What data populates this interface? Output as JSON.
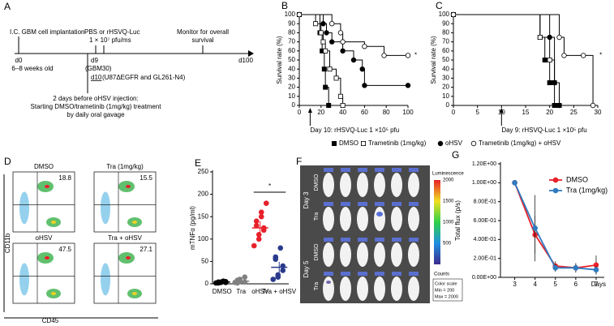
{
  "panel_a": {
    "label": "A",
    "implantation": "I.C. GBM cell implantation",
    "injection": "PBS or rHSVQ-Luc",
    "dose": "1 × 10⁷ pfu/ms",
    "monitor": [
      "Monitor for overall",
      "survival"
    ],
    "d0": "d0",
    "age": "6–8 weeks old",
    "d9": "d9",
    "d9_model": "(GBM30)",
    "d10": "d10",
    "d10_model": "(U87ΔEGFR and GL261-N4)",
    "d100": "d100",
    "note": [
      "2 days before oHSV injection:",
      "Starting DMSO/trametinib (1mg/kg) treatment",
      "by daily oral gavage"
    ]
  },
  "panel_d": {
    "label": "D",
    "plots": [
      {
        "title": "DMSO",
        "value": 18.8
      },
      {
        "title": "Tra (1mg/kg)",
        "value": 15.5
      },
      {
        "title": "oHSV",
        "value": 47.5
      },
      {
        "title": "Tra + oHSV",
        "value": 27.1
      }
    ],
    "y_label": "CD11b",
    "x_label": "CD45"
  },
  "panel_f": {
    "label": "F",
    "days": [
      "Day 3",
      "Day 5"
    ],
    "rows": [
      "DMSO",
      "Tra",
      "DMSO",
      "Tra"
    ],
    "colorbar_title": "Luminescence",
    "colorbar_ticks": [
      2000,
      1500,
      1000,
      500
    ],
    "counts": "Counts",
    "scale_note": [
      "Color scale",
      "Min = 200",
      "Max = 2000"
    ]
  },
  "chart_data": [
    {
      "type": "step",
      "label": "B",
      "y_label": "Survival rate (%)",
      "xlim": [
        0,
        100
      ],
      "xticks": [
        0,
        20,
        40,
        60,
        80,
        100
      ],
      "ylim": [
        0,
        100
      ],
      "yticks": [
        0,
        10,
        20,
        30,
        40,
        50,
        60,
        70,
        80,
        90,
        100
      ],
      "annotation": "Day 10: rHSVQ-Luc 1 ×10⁵ pfu",
      "significance": "*",
      "series": [
        {
          "name": "DMSO",
          "color": "#000000",
          "marker": "square",
          "filled": true,
          "x": [
            0,
            19,
            21,
            23,
            24,
            27
          ],
          "values": [
            100,
            80,
            60,
            40,
            20,
            0
          ]
        },
        {
          "name": "Trametinib (1mg/kg)",
          "color": "#000000",
          "marker": "square",
          "filled": false,
          "x": [
            0,
            15,
            20,
            22,
            24,
            28,
            34,
            38,
            40
          ],
          "values": [
            100,
            90,
            80,
            70,
            60,
            40,
            30,
            10,
            0
          ]
        },
        {
          "name": "oHSV",
          "color": "#000000",
          "marker": "circle",
          "filled": true,
          "x": [
            0,
            22,
            25,
            30,
            40,
            50,
            58,
            60,
            100
          ],
          "values": [
            100,
            90,
            80,
            70,
            60,
            50,
            40,
            22,
            22
          ]
        },
        {
          "name": "Trametinib (1mg/kg) + oHSV",
          "color": "#000000",
          "marker": "circle",
          "filled": false,
          "x": [
            0,
            30,
            38,
            40,
            60,
            78,
            100
          ],
          "values": [
            100,
            90,
            80,
            70,
            65,
            55,
            55
          ]
        }
      ]
    },
    {
      "type": "step",
      "label": "C",
      "y_label": "Survival rate (%)",
      "xlim": [
        0,
        30
      ],
      "xticks": [
        0,
        5,
        10,
        15,
        20,
        25,
        30
      ],
      "ylim": [
        0,
        100
      ],
      "yticks": [
        0,
        10,
        20,
        30,
        40,
        50,
        60,
        70,
        80,
        90,
        100
      ],
      "annotation": "Day 9: rHSVQ-Luc 1 ×10⁵ pfu",
      "significance": "*",
      "series": [
        {
          "color": "#000000",
          "marker": "square",
          "filled": true,
          "x": [
            0,
            18,
            19,
            20,
            21
          ],
          "values": [
            100,
            75,
            50,
            25,
            0
          ]
        },
        {
          "color": "#000000",
          "marker": "square",
          "filled": false,
          "x": [
            0,
            18,
            20,
            21,
            22
          ],
          "values": [
            100,
            75,
            50,
            25,
            0
          ]
        },
        {
          "color": "#000000",
          "marker": "circle",
          "filled": true,
          "x": [
            0,
            20,
            21,
            22
          ],
          "values": [
            100,
            75,
            25,
            0
          ]
        },
        {
          "color": "#000000",
          "marker": "circle",
          "filled": false,
          "x": [
            0,
            22,
            23,
            27,
            29
          ],
          "values": [
            100,
            75,
            55,
            55,
            0
          ]
        }
      ]
    },
    {
      "type": "strip",
      "label": "E",
      "y_label": "mTNFα (pg/ml)",
      "categories": [
        "DMSO",
        "Tra",
        "oHSV",
        "Tra + oHSV"
      ],
      "colors": [
        "#000000",
        "#808080",
        "#e8202a",
        "#2b3a8c"
      ],
      "points": [
        [
          2,
          3,
          4,
          5,
          3,
          2,
          4,
          6
        ],
        [
          3,
          5,
          10,
          15,
          4,
          2,
          8
        ],
        [
          85,
          100,
          110,
          120,
          125,
          130,
          140,
          150,
          160,
          180
        ],
        [
          10,
          15,
          20,
          30,
          40,
          55,
          60,
          80
        ]
      ],
      "means": [
        4,
        6,
        125,
        37
      ],
      "errors": [
        1,
        3,
        15,
        12
      ],
      "ylim": [
        0,
        250
      ],
      "yticks": [
        0,
        50,
        100,
        150,
        200,
        250
      ],
      "significance": "*"
    },
    {
      "type": "line",
      "label": "G",
      "y_label": "Total flux (p/s)",
      "x_label": "Days",
      "x": [
        3,
        4,
        5,
        6,
        7
      ],
      "xlim": [
        2.3,
        7.4
      ],
      "xticks": [
        3,
        4,
        5,
        6,
        7
      ],
      "ylim": [
        0,
        1.2
      ],
      "yticks": [
        {
          "value": 0,
          "label": "0.00E+00"
        },
        {
          "value": 0.2,
          "label": "2.00E-01"
        },
        {
          "value": 0.4,
          "label": "4.00E-01"
        },
        {
          "value": 0.6,
          "label": "6.00E-01"
        },
        {
          "value": 0.8,
          "label": "8.00E-01"
        },
        {
          "value": 1.0,
          "label": "1.00E+00"
        },
        {
          "value": 1.2,
          "label": "1.20E+00"
        }
      ],
      "series": [
        {
          "name": "DMSO",
          "color": "#e8202a",
          "values": [
            1.0,
            0.45,
            0.12,
            0.1,
            0.13
          ],
          "errors": [
            0,
            0.2,
            0.05,
            0.04,
            0.1
          ]
        },
        {
          "name": "Tra (1mg/kg)",
          "color": "#2f7bbf",
          "values": [
            1.0,
            0.52,
            0.1,
            0.1,
            0.08
          ],
          "errors": [
            0,
            0.35,
            0.04,
            0.05,
            0.04
          ]
        }
      ]
    }
  ]
}
